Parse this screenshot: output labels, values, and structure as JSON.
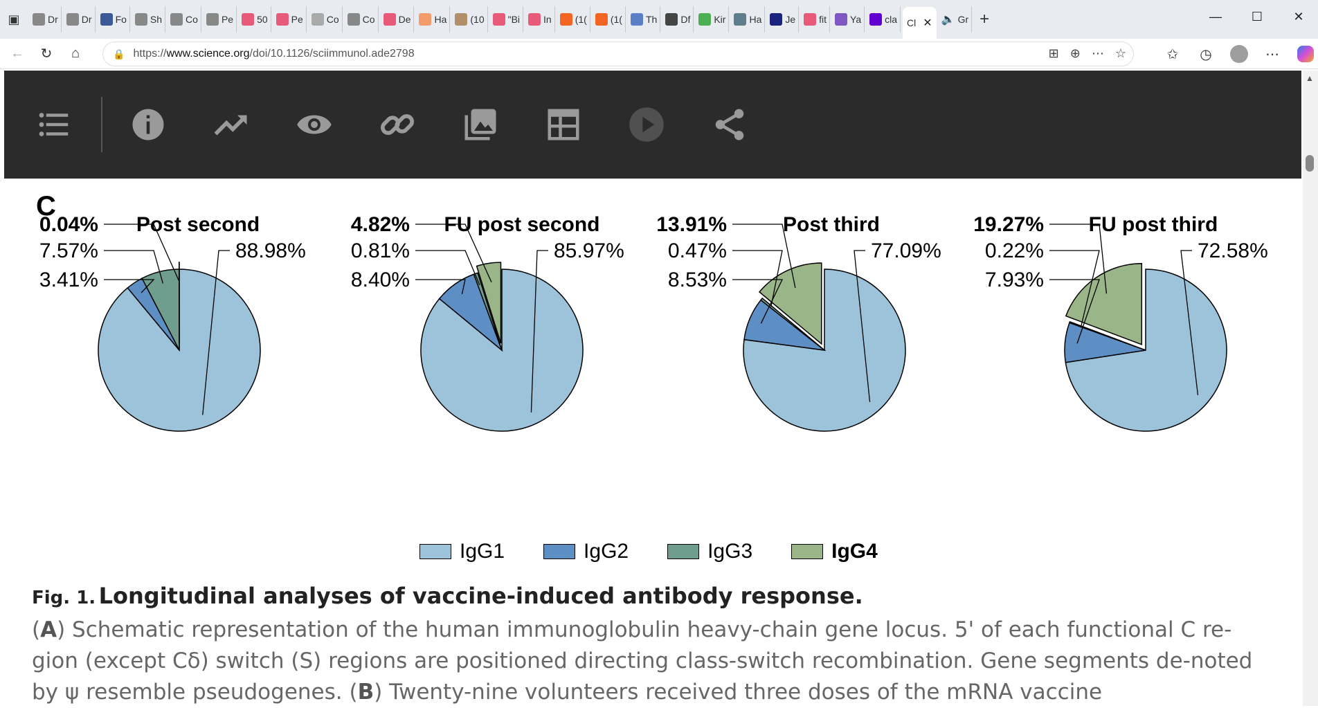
{
  "browser": {
    "tabs": [
      {
        "label": "Dr",
        "color": "#888"
      },
      {
        "label": "Dr",
        "color": "#888"
      },
      {
        "label": "Fo",
        "color": "#3b5998"
      },
      {
        "label": "Sh",
        "color": "#888"
      },
      {
        "label": "Co",
        "color": "#888"
      },
      {
        "label": "Pe",
        "color": "#888"
      },
      {
        "label": "50",
        "color": "#e85a7a"
      },
      {
        "label": "Pe",
        "color": "#e85a7a"
      },
      {
        "label": "Co",
        "color": "#aaa"
      },
      {
        "label": "Co",
        "color": "#888"
      },
      {
        "label": "De",
        "color": "#e85a7a"
      },
      {
        "label": "Ha",
        "color": "#f39c6b"
      },
      {
        "label": "(10",
        "color": "#b08f6a"
      },
      {
        "label": "\"Bi",
        "color": "#e85a7a"
      },
      {
        "label": "In",
        "color": "#e85a7a"
      },
      {
        "label": "(1(",
        "color": "#f26522"
      },
      {
        "label": "(1(",
        "color": "#f26522"
      },
      {
        "label": "Th",
        "color": "#5b7fc7"
      },
      {
        "label": "Df",
        "color": "#444"
      },
      {
        "label": "Kir",
        "color": "#4caf50"
      },
      {
        "label": "Ha",
        "color": "#607d8b"
      },
      {
        "label": "Je",
        "color": "#1a237e"
      },
      {
        "label": "fit",
        "color": "#e85a7a"
      },
      {
        "label": "Ya",
        "color": "#7e57c2"
      },
      {
        "label": "cla",
        "color": "#6001d2"
      }
    ],
    "active_tab": {
      "label": "Cl",
      "close": "✕"
    },
    "tab_extra": {
      "label": "Gr"
    },
    "new_tab": "+",
    "window": {
      "minimize": "—",
      "maximize": "☐",
      "close": "✕"
    },
    "url": {
      "prefix": "https://",
      "domain": "www.science.org",
      "path": "/doi/10.1126/sciimmunol.ade2798"
    }
  },
  "chart_data": [
    {
      "type": "pie",
      "title": "Post  second",
      "labels": [
        "IgG1",
        "IgG2",
        "IgG3",
        "IgG4"
      ],
      "values": [
        88.98,
        3.41,
        7.57,
        0.04
      ],
      "value_labels": [
        "88.98%",
        "3.41%",
        "7.57%",
        "0.04%"
      ],
      "exploded": "IgG4"
    },
    {
      "type": "pie",
      "title": "FU post second",
      "labels": [
        "IgG1",
        "IgG2",
        "IgG3",
        "IgG4"
      ],
      "values": [
        85.97,
        8.4,
        0.81,
        4.82
      ],
      "value_labels": [
        "85.97%",
        "8.40%",
        "0.81%",
        "4.82%"
      ],
      "exploded": "IgG4"
    },
    {
      "type": "pie",
      "title": "Post third",
      "labels": [
        "IgG1",
        "IgG2",
        "IgG3",
        "IgG4"
      ],
      "values": [
        77.09,
        8.53,
        0.47,
        13.91
      ],
      "value_labels": [
        "77.09%",
        "8.53%",
        "0.47%",
        "13.91%"
      ],
      "exploded": "IgG4"
    },
    {
      "type": "pie",
      "title": "FU post third",
      "labels": [
        "IgG1",
        "IgG2",
        "IgG3",
        "IgG4"
      ],
      "values": [
        72.58,
        7.93,
        0.22,
        19.27
      ],
      "value_labels": [
        "72.58%",
        "7.93%",
        "0.22%",
        "19.27%"
      ],
      "exploded": "IgG4"
    }
  ],
  "colors": {
    "IgG1": "#9cc3d9",
    "IgG2": "#5e8fc4",
    "IgG3": "#6f9e8e",
    "IgG4": "#9ab587"
  },
  "panel_letter": "C",
  "legend": [
    {
      "label": "IgG1",
      "bold": false
    },
    {
      "label": "IgG2",
      "bold": false
    },
    {
      "label": "IgG3",
      "bold": false
    },
    {
      "label": "IgG4",
      "bold": true
    }
  ],
  "caption": {
    "fig_label": "Fig. 1.",
    "title": "Longitudinal analyses of vaccine-induced antibody response.",
    "p1_open": "(",
    "p1_letter": "A",
    "p1_text": ") Schematic representation of the human immunoglobulin heavy-chain gene locus. 5' of each functional C re-gion (except Cδ) switch (S) regions are positioned directing class-switch recombination. Gene segments de-noted by ψ resemble pseudogenes. (",
    "p2_letter": "B",
    "p2_text": ") Twenty-nine volunteers received three doses of the mRNA vaccine"
  }
}
